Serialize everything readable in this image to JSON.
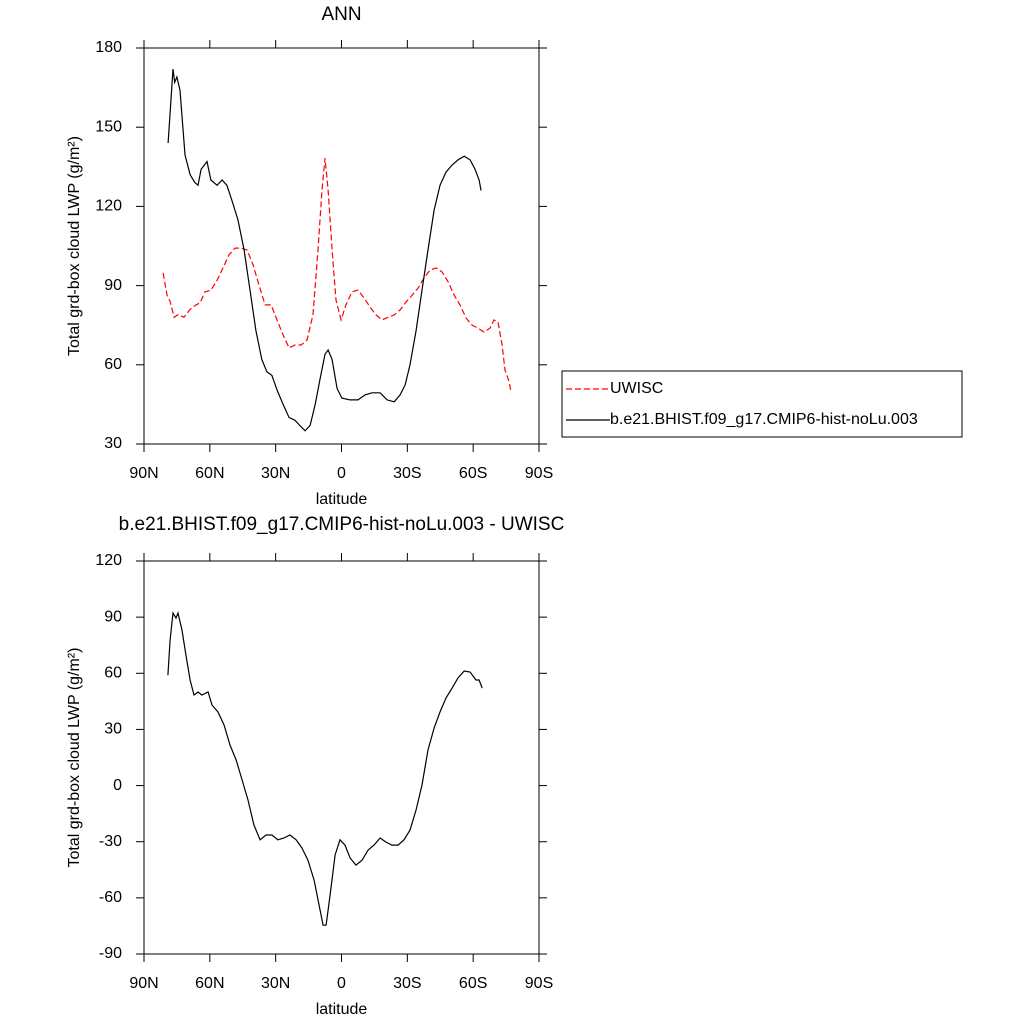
{
  "chart_data": [
    {
      "type": "line",
      "title": "ANN",
      "xlabel": "latitude",
      "ylabel": "Total grd-box cloud LWP (g/m²)",
      "xlim": [
        90,
        -90
      ],
      "ylim": [
        30,
        180
      ],
      "xticks": [
        {
          "value": 90,
          "label": "90N"
        },
        {
          "value": 60,
          "label": "60N"
        },
        {
          "value": 30,
          "label": "30N"
        },
        0,
        {
          "value": -30,
          "label": "30S"
        },
        {
          "value": -60,
          "label": "60S"
        },
        {
          "value": -90,
          "label": "90S"
        }
      ],
      "yticks": [
        30,
        60,
        90,
        120,
        150,
        180
      ],
      "legend": "right",
      "series": [
        {
          "name": "UWISC",
          "color": "#ff0000",
          "style": "dashed",
          "x": [
            81.3,
            79.5,
            78.1,
            76.3,
            74.5,
            71.8,
            69,
            66.3,
            64.5,
            62.2,
            59.5,
            56.7,
            54,
            51.3,
            48.5,
            45.8,
            43,
            40.3,
            37.6,
            34.8,
            32.1,
            29.4,
            26.6,
            23.9,
            21.2,
            18.4,
            15.7,
            13,
            10.7,
            8.9,
            7.5,
            6.1,
            4.3,
            2.5,
            0.2,
            -2,
            -4.8,
            -7.5,
            -10.3,
            -13,
            -15.7,
            -18.5,
            -21.2,
            -24,
            -26.7,
            -29.4,
            -32.2,
            -34.9,
            -37.6,
            -40.4,
            -43.1,
            -45.8,
            -48.6,
            -51.3,
            -54,
            -56.8,
            -59.5,
            -62.2,
            -65,
            -67.7,
            -69.5,
            -71.3,
            -73.2,
            -74.5,
            -76.4,
            -77.3
          ],
          "values": [
            94.8,
            86.4,
            84,
            78,
            79,
            78,
            81,
            82.7,
            83.4,
            87.6,
            88.3,
            92,
            96.7,
            101.6,
            104.2,
            104.2,
            103.5,
            97.8,
            90.2,
            82.7,
            82.7,
            77,
            71.3,
            66.4,
            67.5,
            67.5,
            69.4,
            79,
            103.5,
            126.2,
            138.3,
            126.2,
            103.5,
            84.5,
            77,
            82.7,
            87.6,
            88.3,
            85.3,
            81.9,
            78.9,
            77,
            78,
            78.9,
            80.8,
            83.8,
            86.4,
            89.1,
            92.9,
            95.9,
            96.7,
            95.2,
            91.4,
            86.4,
            82.7,
            77.7,
            75,
            73.9,
            72.4,
            73.9,
            77,
            76.2,
            67.5,
            58,
            53.5,
            49.3
          ]
        },
        {
          "name": "b.e21.BHIST.f09_g17.CMIP6-hist-noLu.003",
          "color": "#000000",
          "style": "solid",
          "x": [
            79,
            78,
            76.8,
            76,
            75,
            73.6,
            71.3,
            69,
            66.8,
            65.4,
            64,
            61.3,
            59.5,
            56.7,
            54.4,
            52.2,
            50,
            47.2,
            44.4,
            41.7,
            39,
            36.3,
            34,
            31.7,
            29.4,
            26.6,
            23.9,
            21.2,
            19,
            16.6,
            14.3,
            12,
            9.8,
            7.5,
            6.1,
            4.3,
            2,
            -0.2,
            -3.9,
            -7.5,
            -10.7,
            -13.9,
            -17.6,
            -20.8,
            -24,
            -26.7,
            -29,
            -31.2,
            -34,
            -36.7,
            -39.4,
            -42.2,
            -44.9,
            -47.6,
            -50.4,
            -53.1,
            -55.9,
            -58.6,
            -60.9,
            -62.7,
            -63.6
          ],
          "values": [
            144,
            156.5,
            172,
            167,
            169,
            164,
            139.5,
            132,
            129,
            128,
            134,
            137,
            130,
            128,
            130,
            128,
            122.4,
            115,
            103.5,
            88.3,
            73,
            62,
            57.3,
            56,
            50.5,
            45,
            40,
            39,
            37,
            35,
            37,
            45,
            54.5,
            64,
            65.6,
            62,
            51,
            47.4,
            46.7,
            46.7,
            48.6,
            49.4,
            49.4,
            46.7,
            46,
            48.6,
            52.3,
            60,
            73,
            88.3,
            103.5,
            118.6,
            128,
            133,
            135.7,
            137.6,
            139,
            137.6,
            134,
            130,
            126
          ]
        }
      ]
    },
    {
      "type": "line",
      "title": "b.e21.BHIST.f09_g17.CMIP6-hist-noLu.003 - UWISC",
      "xlabel": "latitude",
      "ylabel": "Total grd-box cloud LWP (g/m²)",
      "xlim": [
        90,
        -90
      ],
      "ylim": [
        -90,
        120
      ],
      "xticks": [
        {
          "value": 90,
          "label": "90N"
        },
        {
          "value": 60,
          "label": "60N"
        },
        {
          "value": 30,
          "label": "30N"
        },
        0,
        {
          "value": -30,
          "label": "30S"
        },
        {
          "value": -60,
          "label": "60S"
        },
        {
          "value": -90,
          "label": "90S"
        }
      ],
      "yticks": [
        -90,
        -60,
        -30,
        0,
        30,
        60,
        90,
        120
      ],
      "series": [
        {
          "color": "#000000",
          "style": "solid",
          "x": [
            79.1,
            78.1,
            76.8,
            75.4,
            74.5,
            72.7,
            70.9,
            69,
            67.2,
            65.4,
            63.6,
            60.8,
            59,
            56.3,
            53.5,
            50.8,
            48,
            45.3,
            42.6,
            39.9,
            37.1,
            34.4,
            31.7,
            29,
            26.2,
            23.5,
            20.7,
            18,
            15.3,
            12.5,
            10.2,
            8.4,
            7,
            5.2,
            2.9,
            0.7,
            -1.6,
            -3.9,
            -6.6,
            -9.4,
            -12.1,
            -14.8,
            -17.6,
            -20.3,
            -23,
            -25.8,
            -28.5,
            -31.2,
            -34,
            -36.7,
            -39.4,
            -42.2,
            -44.9,
            -47.6,
            -50.4,
            -53.1,
            -55.9,
            -58.6,
            -61.3,
            -62.7,
            -64.1
          ],
          "values": [
            59,
            77.8,
            92.2,
            89.5,
            92.2,
            83.1,
            69.8,
            56.4,
            48.4,
            50,
            48.4,
            50,
            43,
            39.3,
            32.3,
            21.7,
            13.6,
            3,
            -7.7,
            -21,
            -29,
            -26.4,
            -26.4,
            -29,
            -28,
            -26.4,
            -29,
            -33.4,
            -39.8,
            -50.5,
            -63.9,
            -74.6,
            -74.6,
            -58.5,
            -37.1,
            -29,
            -31.8,
            -38.7,
            -42.5,
            -39.8,
            -34.5,
            -31.8,
            -28,
            -30.2,
            -31.8,
            -31.8,
            -29,
            -23.8,
            -13,
            0.3,
            19,
            30.7,
            39.3,
            46.8,
            52.1,
            57.5,
            61.2,
            60.7,
            56.4,
            56.4,
            52.1
          ]
        }
      ]
    }
  ]
}
